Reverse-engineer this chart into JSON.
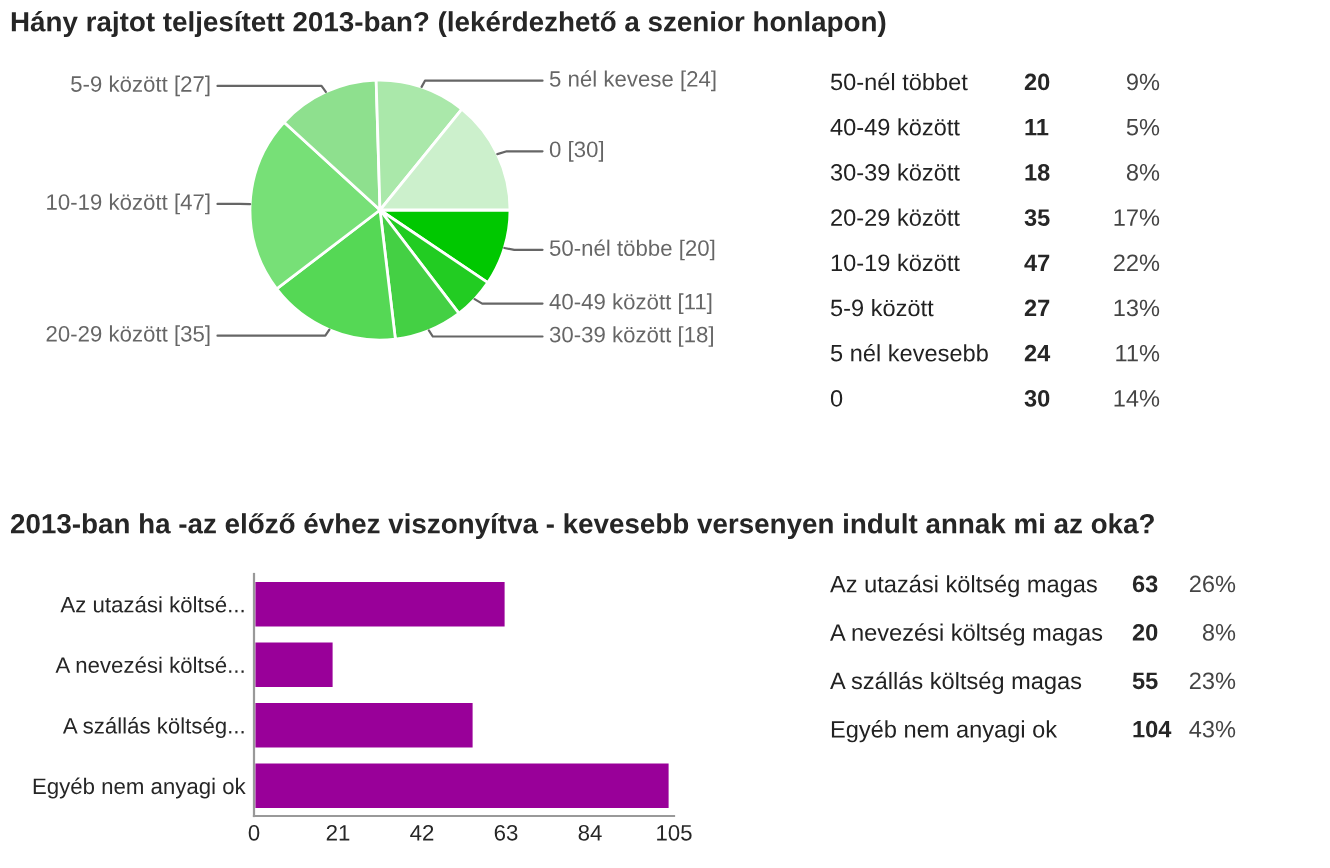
{
  "chart_data": [
    {
      "type": "pie",
      "title": "Hány rajtot teljesített 2013-ban? (lekérdezhető a szenior honlapon)",
      "categories": [
        null,
        null,
        null,
        null,
        null,
        null,
        null,
        null
      ],
      "values": [
        20,
        11,
        18,
        35,
        47,
        27,
        24,
        30
      ],
      "value_labels": [
        "50-nél többe [20]",
        "40-49 között [11]",
        "30-39 között [18]",
        "20-29 között [35]",
        "10-19 között [47]",
        "5-9 között [27]",
        "5 nél kevese [24]",
        "0 [30]"
      ],
      "colors": [
        "#00c800",
        "#22cc22",
        "#44d044",
        "#55d855",
        "#77e077",
        "#8ee08e",
        "#aae8aa",
        "#ccf0cc"
      ],
      "data_labels": true,
      "legend": false
    },
    {
      "type": "other",
      "categories": [
        "50-nél többet",
        "40-49 között",
        "30-39 között",
        "20-29 között",
        "10-19 között",
        "5-9 között",
        "5 nél kevesebb",
        "0"
      ],
      "values": [
        9,
        5,
        8,
        17,
        22,
        13,
        11,
        14
      ],
      "value_labels": [
        "9%",
        "5%",
        "8%",
        "17%",
        "22%",
        "13%",
        "11%",
        "14%"
      ],
      "annotations": [
        "20",
        "11",
        "18",
        "35",
        "47",
        "27",
        "24",
        "30"
      ]
    },
    {
      "type": "bar",
      "orientation": "horizontal",
      "title": "2013-ban ha -az előző évhez viszonyítva - kevesebb versenyen indult annak mi az oka?",
      "categories": [
        "Az utazási költsé...",
        "A nevezési költsé...",
        "A szállás költség...",
        "Egyéb nem anyagi ok"
      ],
      "values": [
        63,
        20,
        55,
        104
      ],
      "color": "#990099",
      "xlim": [
        0,
        105
      ],
      "xticks": [
        0,
        21,
        42,
        63,
        84,
        105
      ],
      "grid": false,
      "legend": false
    },
    {
      "type": "other",
      "categories": [
        "Az utazási költség magas",
        "A nevezési költség magas",
        "A szállás költség magas",
        "Egyéb nem anyagi ok"
      ],
      "values": [
        26,
        8,
        23,
        43
      ],
      "value_labels": [
        "26%",
        "8%",
        "23%",
        "43%"
      ],
      "annotations": [
        "63",
        "20",
        "55",
        "104"
      ]
    }
  ]
}
